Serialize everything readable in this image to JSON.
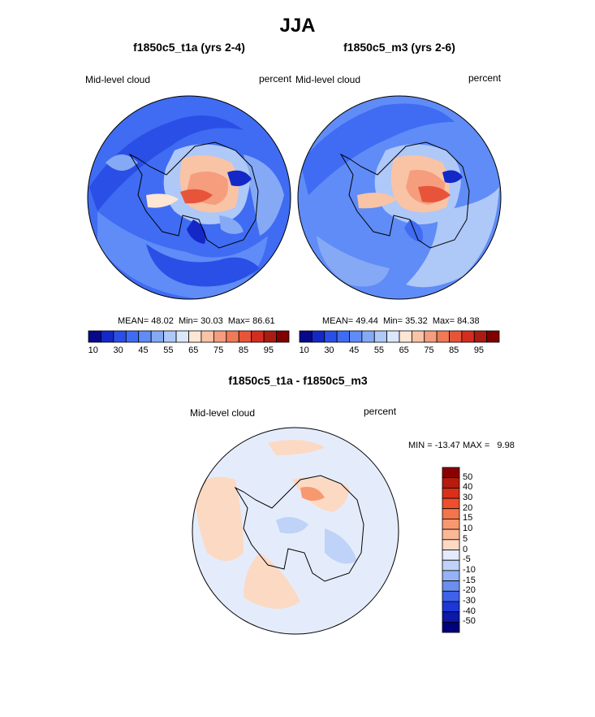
{
  "page": {
    "title": "JJA"
  },
  "panels": [
    {
      "id": "a",
      "title": "f1850c5_t1a (yrs 2-4)",
      "variable_label": "Mid-level cloud",
      "units_label": "percent",
      "stats": {
        "mean_label": "MEAN=",
        "mean": "48.02",
        "min_label": "Min=",
        "min": "30.03",
        "max_label": "Max=",
        "max": "86.61"
      }
    },
    {
      "id": "b",
      "title": "f1850c5_m3 (yrs 2-6)",
      "variable_label": "Mid-level cloud",
      "units_label": "percent",
      "stats": {
        "mean_label": "MEAN=",
        "mean": "49.44",
        "min_label": "Min=",
        "min": "35.32",
        "max_label": "Max=",
        "max": "84.38"
      }
    },
    {
      "id": "diff",
      "title": "f1850c5_t1a - f1850c5_m3",
      "variable_label": "Mid-level cloud",
      "units_label": "percent",
      "minmax_text": "MIN = -13.47 MAX =   9.98"
    }
  ],
  "chart_data": [
    {
      "type": "heatmap",
      "title": "f1850c5_t1a (yrs 2-4)",
      "projection": "south-polar-stereographic",
      "variable": "Mid-level cloud",
      "units": "percent",
      "stats": {
        "mean": 48.02,
        "min": 30.03,
        "max": 86.61
      },
      "colorbar": {
        "orientation": "horizontal",
        "tick_labels": [
          "10",
          "30",
          "45",
          "55",
          "65",
          "75",
          "85",
          "95"
        ],
        "colors": [
          "#08088c",
          "#1428c8",
          "#2a4fe6",
          "#3f6cf2",
          "#5f8cf7",
          "#85a9f5",
          "#aec8f8",
          "#dbe7fb",
          "#fde6d4",
          "#f9c3a6",
          "#f59d7d",
          "#ef7a55",
          "#e8543a",
          "#d42d1f",
          "#aa1b12",
          "#800000"
        ]
      }
    },
    {
      "type": "heatmap",
      "title": "f1850c5_m3 (yrs 2-6)",
      "projection": "south-polar-stereographic",
      "variable": "Mid-level cloud",
      "units": "percent",
      "stats": {
        "mean": 49.44,
        "min": 35.32,
        "max": 84.38
      },
      "colorbar": {
        "orientation": "horizontal",
        "tick_labels": [
          "10",
          "30",
          "45",
          "55",
          "65",
          "75",
          "85",
          "95"
        ],
        "colors": [
          "#08088c",
          "#1428c8",
          "#2a4fe6",
          "#3f6cf2",
          "#5f8cf7",
          "#85a9f5",
          "#aec8f8",
          "#dbe7fb",
          "#fde6d4",
          "#f9c3a6",
          "#f59d7d",
          "#ef7a55",
          "#e8543a",
          "#d42d1f",
          "#aa1b12",
          "#800000"
        ]
      }
    },
    {
      "type": "heatmap",
      "title": "f1850c5_t1a - f1850c5_m3",
      "projection": "south-polar-stereographic",
      "variable": "Mid-level cloud",
      "units": "percent",
      "stats": {
        "min": -13.47,
        "max": 9.98
      },
      "colorbar": {
        "orientation": "vertical",
        "tick_labels": [
          "50",
          "40",
          "30",
          "20",
          "15",
          "10",
          "5",
          "0",
          "-5",
          "-10",
          "-15",
          "-20",
          "-30",
          "-40",
          "-50"
        ],
        "colors": [
          "#8b0000",
          "#b71c0c",
          "#d9301a",
          "#ee4f2c",
          "#f4744c",
          "#f8986f",
          "#fbb896",
          "#fcd9c2",
          "#e4ecfb",
          "#bfd2f8",
          "#94b3f5",
          "#6b8ff0",
          "#3f62ea",
          "#1c37d4",
          "#0c18a8",
          "#00007a"
        ]
      }
    }
  ]
}
